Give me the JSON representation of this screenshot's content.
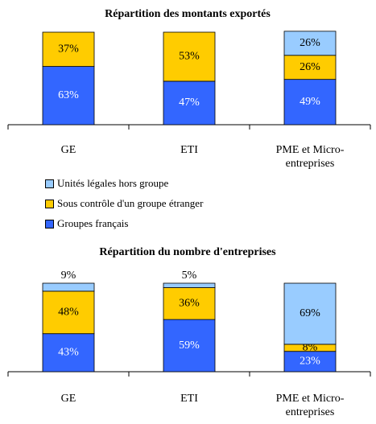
{
  "chart_data": [
    {
      "type": "bar",
      "stacked": true,
      "title": "Répartition des montants exportés",
      "categories": [
        "GE",
        "ETI",
        "PME et Micro-entreprises"
      ],
      "series": [
        {
          "name": "Groupes français",
          "color": "#3366ff",
          "values": [
            63,
            47,
            49
          ],
          "value_labels": [
            "63%",
            "47%",
            "49%"
          ]
        },
        {
          "name": "Sous contrôle d'un groupe étranger",
          "color": "#ffcc00",
          "values": [
            37,
            53,
            26
          ],
          "value_labels": [
            "37%",
            "53%",
            "26%"
          ]
        },
        {
          "name": "Unités légales hors groupe",
          "color": "#99ccff",
          "values": [
            null,
            null,
            26
          ],
          "value_labels": [
            null,
            null,
            "26%"
          ]
        }
      ]
    },
    {
      "type": "bar",
      "stacked": true,
      "title": "Répartition du nombre d'entreprises",
      "categories": [
        "GE",
        "ETI",
        "PME et Micro-entreprises"
      ],
      "series": [
        {
          "color": "#3366ff",
          "values": [
            43,
            59,
            23
          ],
          "value_labels": [
            "43%",
            "59%",
            "23%"
          ]
        },
        {
          "color": "#ffcc00",
          "values": [
            48,
            36,
            8
          ],
          "value_labels": [
            "48%",
            "36%",
            "8%"
          ]
        },
        {
          "color": "#99ccff",
          "values": [
            9,
            5,
            69
          ],
          "value_labels": [
            "9%",
            "5%",
            "69%"
          ]
        }
      ]
    }
  ]
}
